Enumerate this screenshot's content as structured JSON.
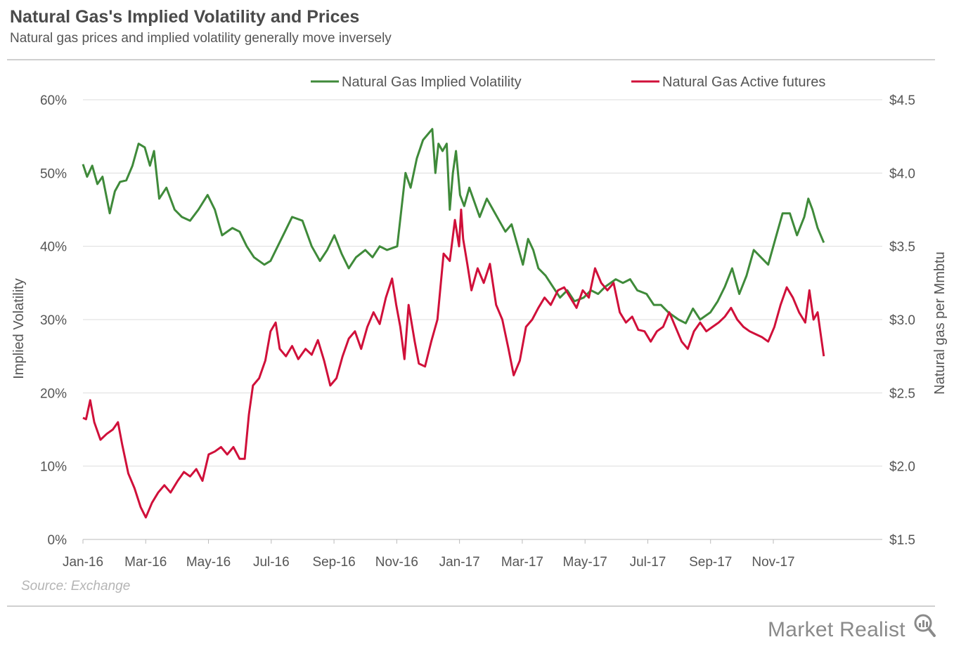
{
  "header": {
    "title": "Natural Gas's Implied Volatility and Prices",
    "subtitle": "Natural gas prices and implied volatility generally move inversely"
  },
  "footer": {
    "source": "Source: Exchange",
    "brand": "Market Realist",
    "brand_icon": "magnifier-icon"
  },
  "colors": {
    "volatility": "#3f8a3a",
    "futures": "#d0103a",
    "grid": "#dddddd",
    "axis_text": "#555555"
  },
  "chart_data": {
    "type": "line",
    "title": "",
    "xlabel": "",
    "ylabel_left": "Implied Volatility",
    "ylabel_right": "Natural gas per Mmbtu",
    "x_ticks": [
      "Jan-16",
      "Mar-16",
      "May-16",
      "Jul-16",
      "Sep-16",
      "Nov-16",
      "Jan-17",
      "Mar-17",
      "May-17",
      "Jul-17",
      "Sep-17",
      "Nov-17"
    ],
    "x_range": [
      "2016-01-01",
      "2017-12-20"
    ],
    "y_left": {
      "range": [
        0,
        60
      ],
      "ticks": [
        "0%",
        "10%",
        "20%",
        "30%",
        "40%",
        "50%",
        "60%"
      ]
    },
    "y_right": {
      "range": [
        1.5,
        4.5
      ],
      "ticks": [
        "$1.5",
        "$2.0",
        "$2.5",
        "$3.0",
        "$3.5",
        "$4.0",
        "$4.5"
      ]
    },
    "grid": "horizontal",
    "legend_position": "top",
    "series": [
      {
        "name": "Natural Gas Implied Volatility",
        "axis": "left",
        "points": [
          [
            "2016-01-01",
            51.2
          ],
          [
            "2016-01-05",
            49.5
          ],
          [
            "2016-01-10",
            51.0
          ],
          [
            "2016-01-15",
            48.5
          ],
          [
            "2016-01-20",
            49.5
          ],
          [
            "2016-01-27",
            44.5
          ],
          [
            "2016-02-01",
            47.5
          ],
          [
            "2016-02-06",
            48.8
          ],
          [
            "2016-02-12",
            49.0
          ],
          [
            "2016-02-18",
            51.0
          ],
          [
            "2016-02-24",
            54.0
          ],
          [
            "2016-03-01",
            53.5
          ],
          [
            "2016-03-06",
            51.0
          ],
          [
            "2016-03-10",
            53.0
          ],
          [
            "2016-03-15",
            46.5
          ],
          [
            "2016-03-22",
            48.0
          ],
          [
            "2016-03-30",
            45.0
          ],
          [
            "2016-04-06",
            44.0
          ],
          [
            "2016-04-14",
            43.5
          ],
          [
            "2016-04-22",
            45.0
          ],
          [
            "2016-05-01",
            47.0
          ],
          [
            "2016-05-08",
            45.0
          ],
          [
            "2016-05-15",
            41.5
          ],
          [
            "2016-05-25",
            42.5
          ],
          [
            "2016-06-01",
            42.0
          ],
          [
            "2016-06-08",
            40.0
          ],
          [
            "2016-06-15",
            38.5
          ],
          [
            "2016-06-25",
            37.5
          ],
          [
            "2016-07-01",
            38.0
          ],
          [
            "2016-07-08",
            40.0
          ],
          [
            "2016-07-15",
            42.0
          ],
          [
            "2016-07-22",
            44.0
          ],
          [
            "2016-08-01",
            43.5
          ],
          [
            "2016-08-10",
            40.0
          ],
          [
            "2016-08-18",
            38.0
          ],
          [
            "2016-08-25",
            39.5
          ],
          [
            "2016-09-01",
            41.5
          ],
          [
            "2016-09-08",
            39.0
          ],
          [
            "2016-09-15",
            37.0
          ],
          [
            "2016-09-22",
            38.5
          ],
          [
            "2016-10-01",
            39.5
          ],
          [
            "2016-10-08",
            38.5
          ],
          [
            "2016-10-15",
            40.0
          ],
          [
            "2016-10-22",
            39.5
          ],
          [
            "2016-11-01",
            40.0
          ],
          [
            "2016-11-05",
            45.0
          ],
          [
            "2016-11-09",
            50.0
          ],
          [
            "2016-11-14",
            48.0
          ],
          [
            "2016-11-20",
            52.0
          ],
          [
            "2016-11-26",
            54.5
          ],
          [
            "2016-12-02",
            55.5
          ],
          [
            "2016-12-05",
            56.0
          ],
          [
            "2016-12-08",
            50.0
          ],
          [
            "2016-12-11",
            54.0
          ],
          [
            "2016-12-15",
            53.0
          ],
          [
            "2016-12-19",
            54.0
          ],
          [
            "2016-12-22",
            45.0
          ],
          [
            "2016-12-25",
            50.0
          ],
          [
            "2016-12-28",
            53.0
          ],
          [
            "2017-01-01",
            47.0
          ],
          [
            "2017-01-05",
            45.5
          ],
          [
            "2017-01-10",
            48.0
          ],
          [
            "2017-01-15",
            46.0
          ],
          [
            "2017-01-20",
            44.0
          ],
          [
            "2017-01-27",
            46.5
          ],
          [
            "2017-02-02",
            45.0
          ],
          [
            "2017-02-08",
            43.5
          ],
          [
            "2017-02-14",
            42.0
          ],
          [
            "2017-02-20",
            43.0
          ],
          [
            "2017-02-26",
            40.0
          ],
          [
            "2017-03-03",
            37.5
          ],
          [
            "2017-03-08",
            41.0
          ],
          [
            "2017-03-13",
            39.5
          ],
          [
            "2017-03-18",
            37.0
          ],
          [
            "2017-03-25",
            36.0
          ],
          [
            "2017-04-01",
            34.5
          ],
          [
            "2017-04-08",
            33.0
          ],
          [
            "2017-04-15",
            34.0
          ],
          [
            "2017-04-22",
            32.5
          ],
          [
            "2017-05-01",
            33.0
          ],
          [
            "2017-05-08",
            34.0
          ],
          [
            "2017-05-15",
            33.5
          ],
          [
            "2017-05-22",
            34.5
          ],
          [
            "2017-06-01",
            35.5
          ],
          [
            "2017-06-08",
            35.0
          ],
          [
            "2017-06-15",
            35.5
          ],
          [
            "2017-06-22",
            34.0
          ],
          [
            "2017-07-01",
            33.5
          ],
          [
            "2017-07-08",
            32.0
          ],
          [
            "2017-07-15",
            32.0
          ],
          [
            "2017-07-22",
            31.0
          ],
          [
            "2017-08-01",
            30.0
          ],
          [
            "2017-08-08",
            29.5
          ],
          [
            "2017-08-15",
            31.5
          ],
          [
            "2017-08-22",
            30.0
          ],
          [
            "2017-09-01",
            31.0
          ],
          [
            "2017-09-08",
            32.5
          ],
          [
            "2017-09-15",
            34.5
          ],
          [
            "2017-09-22",
            37.0
          ],
          [
            "2017-09-29",
            33.5
          ],
          [
            "2017-10-06",
            36.0
          ],
          [
            "2017-10-13",
            39.5
          ],
          [
            "2017-10-20",
            38.5
          ],
          [
            "2017-10-27",
            37.5
          ],
          [
            "2017-11-03",
            41.0
          ],
          [
            "2017-11-10",
            44.5
          ],
          [
            "2017-11-17",
            44.5
          ],
          [
            "2017-11-24",
            41.5
          ],
          [
            "2017-12-01",
            44.0
          ],
          [
            "2017-12-05",
            46.5
          ],
          [
            "2017-12-09",
            45.0
          ],
          [
            "2017-12-14",
            42.5
          ],
          [
            "2017-12-20",
            40.5
          ]
        ]
      },
      {
        "name": "Natural Gas Active futures",
        "axis": "right",
        "points": [
          [
            "2016-01-01",
            2.33
          ],
          [
            "2016-01-04",
            2.32
          ],
          [
            "2016-01-08",
            2.45
          ],
          [
            "2016-01-12",
            2.3
          ],
          [
            "2016-01-18",
            2.18
          ],
          [
            "2016-01-24",
            2.22
          ],
          [
            "2016-01-30",
            2.25
          ],
          [
            "2016-02-04",
            2.3
          ],
          [
            "2016-02-08",
            2.15
          ],
          [
            "2016-02-14",
            1.95
          ],
          [
            "2016-02-20",
            1.85
          ],
          [
            "2016-02-26",
            1.72
          ],
          [
            "2016-03-02",
            1.65
          ],
          [
            "2016-03-08",
            1.75
          ],
          [
            "2016-03-14",
            1.82
          ],
          [
            "2016-03-20",
            1.87
          ],
          [
            "2016-03-26",
            1.82
          ],
          [
            "2016-04-02",
            1.9
          ],
          [
            "2016-04-08",
            1.96
          ],
          [
            "2016-04-14",
            1.93
          ],
          [
            "2016-04-20",
            1.98
          ],
          [
            "2016-04-26",
            1.9
          ],
          [
            "2016-05-02",
            2.08
          ],
          [
            "2016-05-08",
            2.1
          ],
          [
            "2016-05-14",
            2.13
          ],
          [
            "2016-05-20",
            2.08
          ],
          [
            "2016-05-26",
            2.13
          ],
          [
            "2016-06-01",
            2.05
          ],
          [
            "2016-06-06",
            2.05
          ],
          [
            "2016-06-10",
            2.35
          ],
          [
            "2016-06-14",
            2.55
          ],
          [
            "2016-06-20",
            2.6
          ],
          [
            "2016-06-26",
            2.72
          ],
          [
            "2016-07-01",
            2.92
          ],
          [
            "2016-07-06",
            2.98
          ],
          [
            "2016-07-10",
            2.8
          ],
          [
            "2016-07-16",
            2.75
          ],
          [
            "2016-07-22",
            2.82
          ],
          [
            "2016-07-28",
            2.73
          ],
          [
            "2016-08-04",
            2.8
          ],
          [
            "2016-08-10",
            2.76
          ],
          [
            "2016-08-16",
            2.86
          ],
          [
            "2016-08-22",
            2.72
          ],
          [
            "2016-08-28",
            2.55
          ],
          [
            "2016-09-03",
            2.6
          ],
          [
            "2016-09-09",
            2.75
          ],
          [
            "2016-09-15",
            2.87
          ],
          [
            "2016-09-21",
            2.92
          ],
          [
            "2016-09-27",
            2.8
          ],
          [
            "2016-10-03",
            2.95
          ],
          [
            "2016-10-09",
            3.05
          ],
          [
            "2016-10-15",
            2.97
          ],
          [
            "2016-10-21",
            3.15
          ],
          [
            "2016-10-27",
            3.28
          ],
          [
            "2016-10-31",
            3.1
          ],
          [
            "2016-11-04",
            2.95
          ],
          [
            "2016-11-08",
            2.73
          ],
          [
            "2016-11-12",
            3.1
          ],
          [
            "2016-11-18",
            2.85
          ],
          [
            "2016-11-22",
            2.7
          ],
          [
            "2016-11-28",
            2.68
          ],
          [
            "2016-12-04",
            2.85
          ],
          [
            "2016-12-10",
            3.0
          ],
          [
            "2016-12-16",
            3.45
          ],
          [
            "2016-12-22",
            3.4
          ],
          [
            "2016-12-27",
            3.68
          ],
          [
            "2016-12-31",
            3.5
          ],
          [
            "2017-01-02",
            3.75
          ],
          [
            "2017-01-04",
            3.55
          ],
          [
            "2017-01-08",
            3.38
          ],
          [
            "2017-01-12",
            3.2
          ],
          [
            "2017-01-18",
            3.35
          ],
          [
            "2017-01-24",
            3.25
          ],
          [
            "2017-01-30",
            3.38
          ],
          [
            "2017-02-05",
            3.1
          ],
          [
            "2017-02-11",
            3.0
          ],
          [
            "2017-02-17",
            2.8
          ],
          [
            "2017-02-22",
            2.62
          ],
          [
            "2017-02-28",
            2.72
          ],
          [
            "2017-03-06",
            2.95
          ],
          [
            "2017-03-12",
            3.0
          ],
          [
            "2017-03-18",
            3.08
          ],
          [
            "2017-03-24",
            3.15
          ],
          [
            "2017-03-30",
            3.1
          ],
          [
            "2017-04-06",
            3.2
          ],
          [
            "2017-04-12",
            3.22
          ],
          [
            "2017-04-18",
            3.15
          ],
          [
            "2017-04-24",
            3.08
          ],
          [
            "2017-04-30",
            3.2
          ],
          [
            "2017-05-06",
            3.15
          ],
          [
            "2017-05-12",
            3.35
          ],
          [
            "2017-05-18",
            3.25
          ],
          [
            "2017-05-24",
            3.2
          ],
          [
            "2017-05-30",
            3.25
          ],
          [
            "2017-06-05",
            3.05
          ],
          [
            "2017-06-11",
            2.98
          ],
          [
            "2017-06-17",
            3.02
          ],
          [
            "2017-06-23",
            2.93
          ],
          [
            "2017-06-29",
            2.92
          ],
          [
            "2017-07-05",
            2.85
          ],
          [
            "2017-07-11",
            2.92
          ],
          [
            "2017-07-17",
            2.95
          ],
          [
            "2017-07-23",
            3.05
          ],
          [
            "2017-07-29",
            2.95
          ],
          [
            "2017-08-04",
            2.85
          ],
          [
            "2017-08-10",
            2.8
          ],
          [
            "2017-08-16",
            2.92
          ],
          [
            "2017-08-22",
            2.98
          ],
          [
            "2017-08-28",
            2.92
          ],
          [
            "2017-09-03",
            2.95
          ],
          [
            "2017-09-09",
            2.98
          ],
          [
            "2017-09-15",
            3.02
          ],
          [
            "2017-09-21",
            3.08
          ],
          [
            "2017-09-27",
            3.0
          ],
          [
            "2017-10-03",
            2.95
          ],
          [
            "2017-10-09",
            2.92
          ],
          [
            "2017-10-15",
            2.9
          ],
          [
            "2017-10-21",
            2.88
          ],
          [
            "2017-10-27",
            2.85
          ],
          [
            "2017-11-02",
            2.95
          ],
          [
            "2017-11-08",
            3.1
          ],
          [
            "2017-11-14",
            3.22
          ],
          [
            "2017-11-20",
            3.15
          ],
          [
            "2017-11-26",
            3.05
          ],
          [
            "2017-12-02",
            2.98
          ],
          [
            "2017-12-06",
            3.2
          ],
          [
            "2017-12-10",
            3.0
          ],
          [
            "2017-12-14",
            3.05
          ],
          [
            "2017-12-17",
            2.9
          ],
          [
            "2017-12-20",
            2.75
          ]
        ]
      }
    ]
  }
}
